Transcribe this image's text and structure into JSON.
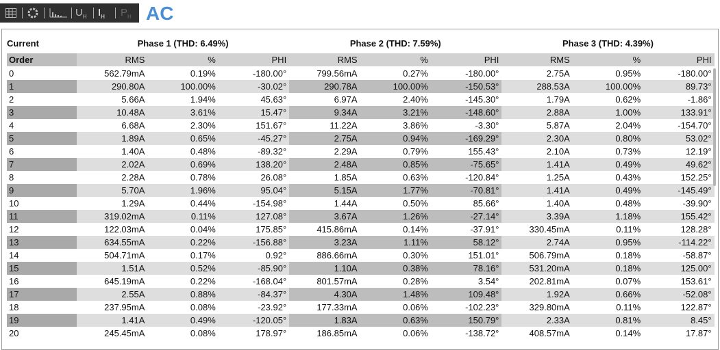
{
  "toolbar": [
    {
      "main": "U",
      "sub": "H"
    },
    {
      "main": "I",
      "sub": "H"
    },
    {
      "main": "P",
      "sub": "H"
    }
  ],
  "header": {
    "title": "AC"
  },
  "table": {
    "corner": [
      "Current",
      "Order"
    ],
    "phases": [
      "Phase 1 (THD: 6.49%)",
      "Phase 2 (THD: 7.59%)",
      "Phase 3 (THD: 4.39%)"
    ],
    "columns": [
      "RMS",
      "%",
      "PHI",
      "RMS",
      "%",
      "PHI",
      "RMS",
      "%",
      "PHI"
    ],
    "rows": [
      [
        "0",
        "562.79mA",
        "0.19%",
        "-180.00°",
        "799.56mA",
        "0.27%",
        "-180.00°",
        "2.75A",
        "0.95%",
        "-180.00°"
      ],
      [
        "1",
        "290.80A",
        "100.00%",
        "-30.02°",
        "290.78A",
        "100.00%",
        "-150.53°",
        "288.53A",
        "100.00%",
        "89.73°"
      ],
      [
        "2",
        "5.66A",
        "1.94%",
        "45.63°",
        "6.97A",
        "2.40%",
        "-145.30°",
        "1.79A",
        "0.62%",
        "-1.86°"
      ],
      [
        "3",
        "10.48A",
        "3.61%",
        "15.47°",
        "9.34A",
        "3.21%",
        "-148.60°",
        "2.88A",
        "1.00%",
        "133.91°"
      ],
      [
        "4",
        "6.68A",
        "2.30%",
        "151.67°",
        "11.22A",
        "3.86%",
        "-3.30°",
        "5.87A",
        "2.04%",
        "-154.70°"
      ],
      [
        "5",
        "1.89A",
        "0.65%",
        "-45.27°",
        "2.75A",
        "0.94%",
        "-169.29°",
        "2.30A",
        "0.80%",
        "53.02°"
      ],
      [
        "6",
        "1.40A",
        "0.48%",
        "-89.32°",
        "2.29A",
        "0.79%",
        "155.43°",
        "2.10A",
        "0.73%",
        "12.19°"
      ],
      [
        "7",
        "2.02A",
        "0.69%",
        "138.20°",
        "2.48A",
        "0.85%",
        "-75.65°",
        "1.41A",
        "0.49%",
        "49.62°"
      ],
      [
        "8",
        "2.28A",
        "0.78%",
        "26.08°",
        "1.85A",
        "0.63%",
        "-120.84°",
        "1.25A",
        "0.43%",
        "152.25°"
      ],
      [
        "9",
        "5.70A",
        "1.96%",
        "95.04°",
        "5.15A",
        "1.77%",
        "-70.81°",
        "1.41A",
        "0.49%",
        "-145.49°"
      ],
      [
        "10",
        "1.29A",
        "0.44%",
        "-154.98°",
        "1.44A",
        "0.50%",
        "85.66°",
        "1.40A",
        "0.48%",
        "-39.90°"
      ],
      [
        "11",
        "319.02mA",
        "0.11%",
        "127.08°",
        "3.67A",
        "1.26%",
        "-27.14°",
        "3.39A",
        "1.18%",
        "155.42°"
      ],
      [
        "12",
        "122.03mA",
        "0.04%",
        "175.85°",
        "415.86mA",
        "0.14%",
        "-37.91°",
        "330.45mA",
        "0.11%",
        "128.28°"
      ],
      [
        "13",
        "634.55mA",
        "0.22%",
        "-156.88°",
        "3.23A",
        "1.11%",
        "58.12°",
        "2.74A",
        "0.95%",
        "-114.22°"
      ],
      [
        "14",
        "504.71mA",
        "0.17%",
        "0.92°",
        "886.66mA",
        "0.30%",
        "151.01°",
        "506.79mA",
        "0.18%",
        "-58.87°"
      ],
      [
        "15",
        "1.51A",
        "0.52%",
        "-85.90°",
        "1.10A",
        "0.38%",
        "78.16°",
        "531.20mA",
        "0.18%",
        "125.00°"
      ],
      [
        "16",
        "645.19mA",
        "0.22%",
        "-168.04°",
        "801.57mA",
        "0.28%",
        "3.54°",
        "202.81mA",
        "0.07%",
        "153.61°"
      ],
      [
        "17",
        "2.55A",
        "0.88%",
        "-84.37°",
        "4.30A",
        "1.48%",
        "109.48°",
        "1.92A",
        "0.66%",
        "-52.08°"
      ],
      [
        "18",
        "237.95mA",
        "0.08%",
        "-23.92°",
        "177.33mA",
        "0.06%",
        "-102.23°",
        "329.80mA",
        "0.11%",
        "122.87°"
      ],
      [
        "19",
        "1.41A",
        "0.49%",
        "-120.05°",
        "1.83A",
        "0.63%",
        "150.79°",
        "2.33A",
        "0.81%",
        "8.45°"
      ],
      [
        "20",
        "245.45mA",
        "0.08%",
        "178.97°",
        "186.85mA",
        "0.06%",
        "-138.72°",
        "408.57mA",
        "0.14%",
        "17.87°"
      ]
    ]
  }
}
